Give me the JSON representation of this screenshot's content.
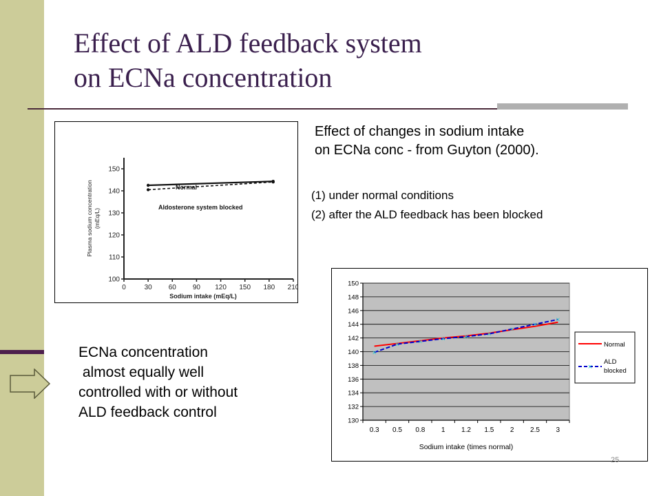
{
  "slide": {
    "title_line1": "Effect of ALD feedback system",
    "title_line2": "on ECNa concentration",
    "caption_line1": "Effect of changes in sodium intake",
    "caption_line2": "on ECNa conc - from Guyton (2000).",
    "condition_1": "(1) under normal conditions",
    "condition_2": "(2) after the ALD feedback has been blocked",
    "conclusion_lines": [
      "ECNa concentration",
      " almost equally well",
      "controlled with or without",
      "ALD feedback control"
    ],
    "slide_number": "25",
    "icons": {
      "arrow": "right-arrow-icon"
    },
    "colors": {
      "sidebar": "#cccc99",
      "title": "#3a1f4d",
      "accent_bar": "#4d1f4d"
    }
  },
  "chart_data": [
    {
      "type": "line",
      "ylabel_line1": "Plasma sodium concentration",
      "ylabel_line2": "(mEq/L)",
      "xlabel": "Sodium intake (mEq/L)",
      "x_ticks": [
        "0",
        "30",
        "60",
        "90",
        "120",
        "150",
        "180",
        "210"
      ],
      "y_ticks": [
        "100",
        "110",
        "120",
        "130",
        "140",
        "150"
      ],
      "xlim": [
        0,
        210
      ],
      "ylim": [
        100,
        155
      ],
      "series": [
        {
          "name": "Normal",
          "x": [
            30,
            185
          ],
          "y": [
            142.5,
            144.3
          ],
          "style": "solid"
        },
        {
          "name": "Aldosterone system blocked",
          "x": [
            30,
            185
          ],
          "y": [
            140.5,
            144.0
          ],
          "style": "dashed"
        }
      ]
    },
    {
      "type": "line",
      "xlabel": "Sodium intake (times normal)",
      "categories": [
        "0.3",
        "0.5",
        "0.8",
        "1",
        "1.2",
        "1.5",
        "2",
        "2.5",
        "3"
      ],
      "y_ticks": [
        "130",
        "132",
        "134",
        "136",
        "138",
        "140",
        "142",
        "144",
        "146",
        "148",
        "150"
      ],
      "ylim": [
        130,
        150
      ],
      "grid": true,
      "legend": "right",
      "series": [
        {
          "name": "Normal",
          "color": "#ff0000",
          "values": [
            140.8,
            141.2,
            141.6,
            142.0,
            142.3,
            142.7,
            143.2,
            143.7,
            144.3
          ]
        },
        {
          "name": "ALD blocked",
          "legend_line1": "ALD",
          "legend_line2": "blocked",
          "color": "#0000cc",
          "values": [
            139.9,
            141.1,
            141.5,
            141.9,
            142.2,
            142.6,
            143.3,
            144.0,
            144.7
          ]
        }
      ]
    }
  ]
}
